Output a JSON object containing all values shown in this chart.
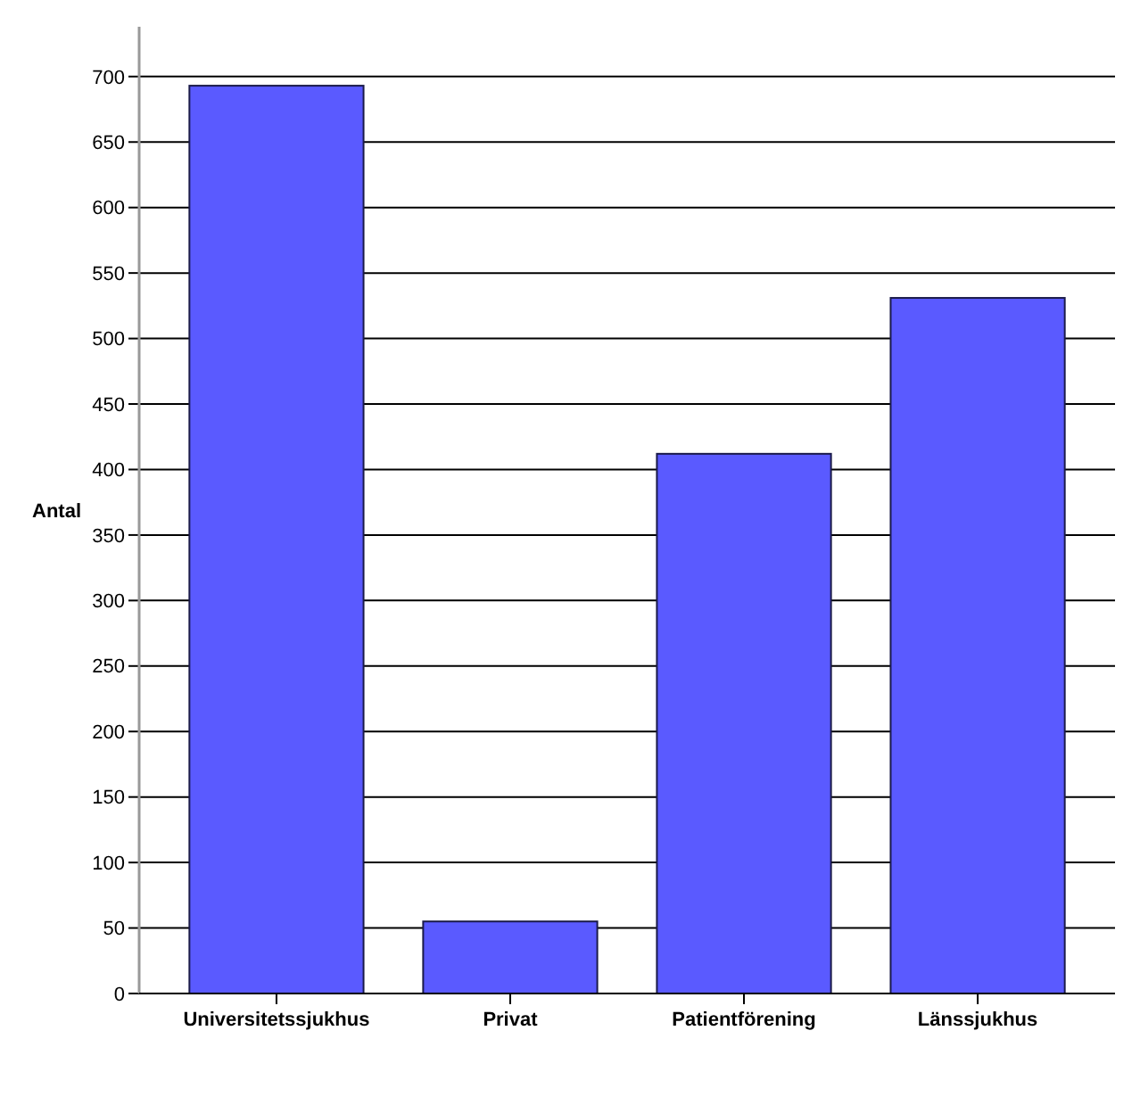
{
  "chart_data": {
    "type": "bar",
    "ylabel": "Antal",
    "categories": [
      "Universitetssjukhus",
      "Privat",
      "Patientförening",
      "Länssjukhus"
    ],
    "values": [
      693,
      55,
      412,
      531
    ],
    "color": "#5a5aff",
    "ylim": [
      0,
      738
    ],
    "yticks": [
      0,
      50,
      100,
      150,
      200,
      250,
      300,
      350,
      400,
      450,
      500,
      550,
      600,
      650,
      700
    ],
    "grid": "y"
  }
}
